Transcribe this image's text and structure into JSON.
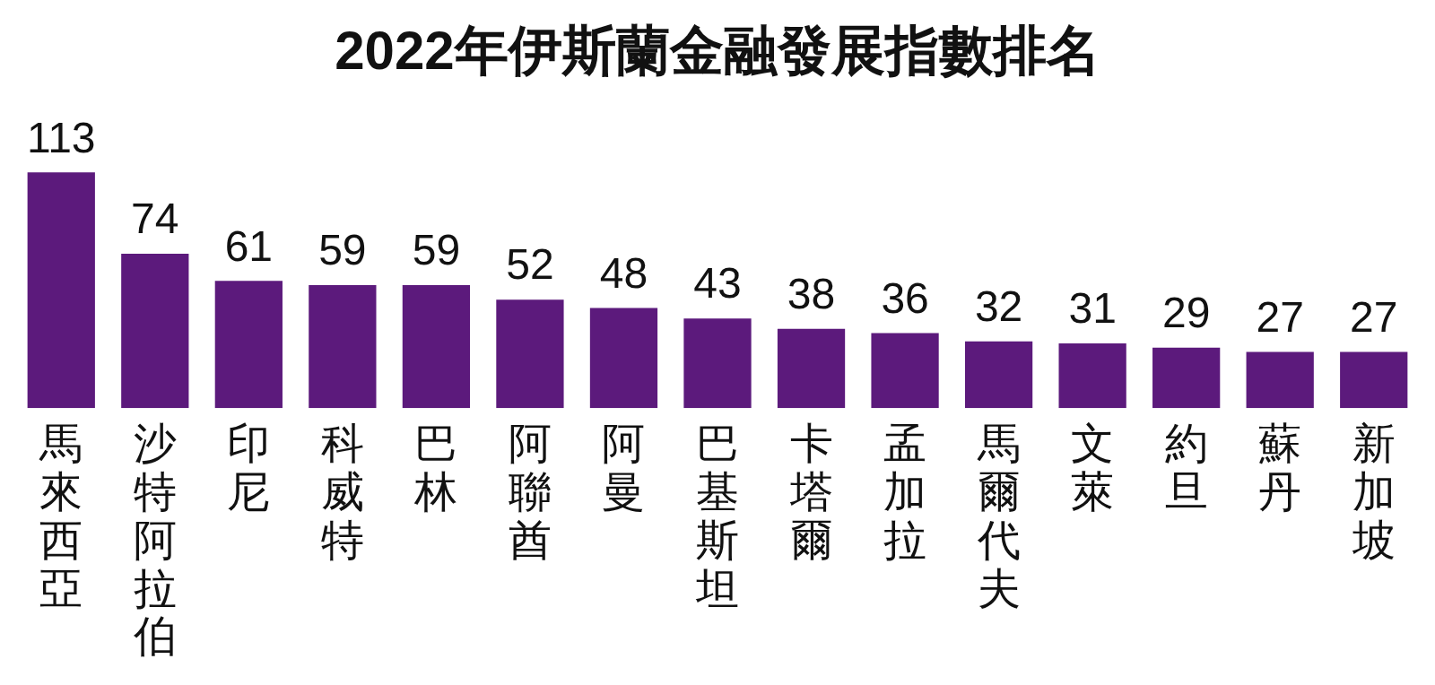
{
  "chart_data": {
    "type": "bar",
    "title": "2022年伊斯蘭金融發展指數排名",
    "categories": [
      "馬來西亞",
      "沙特阿拉伯",
      "印尼",
      "科威特",
      "巴林",
      "阿聯酋",
      "阿曼",
      "巴基斯坦",
      "卡塔爾",
      "孟加拉",
      "馬爾代夫",
      "文萊",
      "約旦",
      "蘇丹",
      "新加坡"
    ],
    "values": [
      113,
      74,
      61,
      59,
      59,
      52,
      48,
      43,
      38,
      36,
      32,
      31,
      29,
      27,
      27
    ],
    "color": "#5c1a7c",
    "data_labels": true,
    "grid": false,
    "legend": false,
    "tick_labels": "x"
  }
}
